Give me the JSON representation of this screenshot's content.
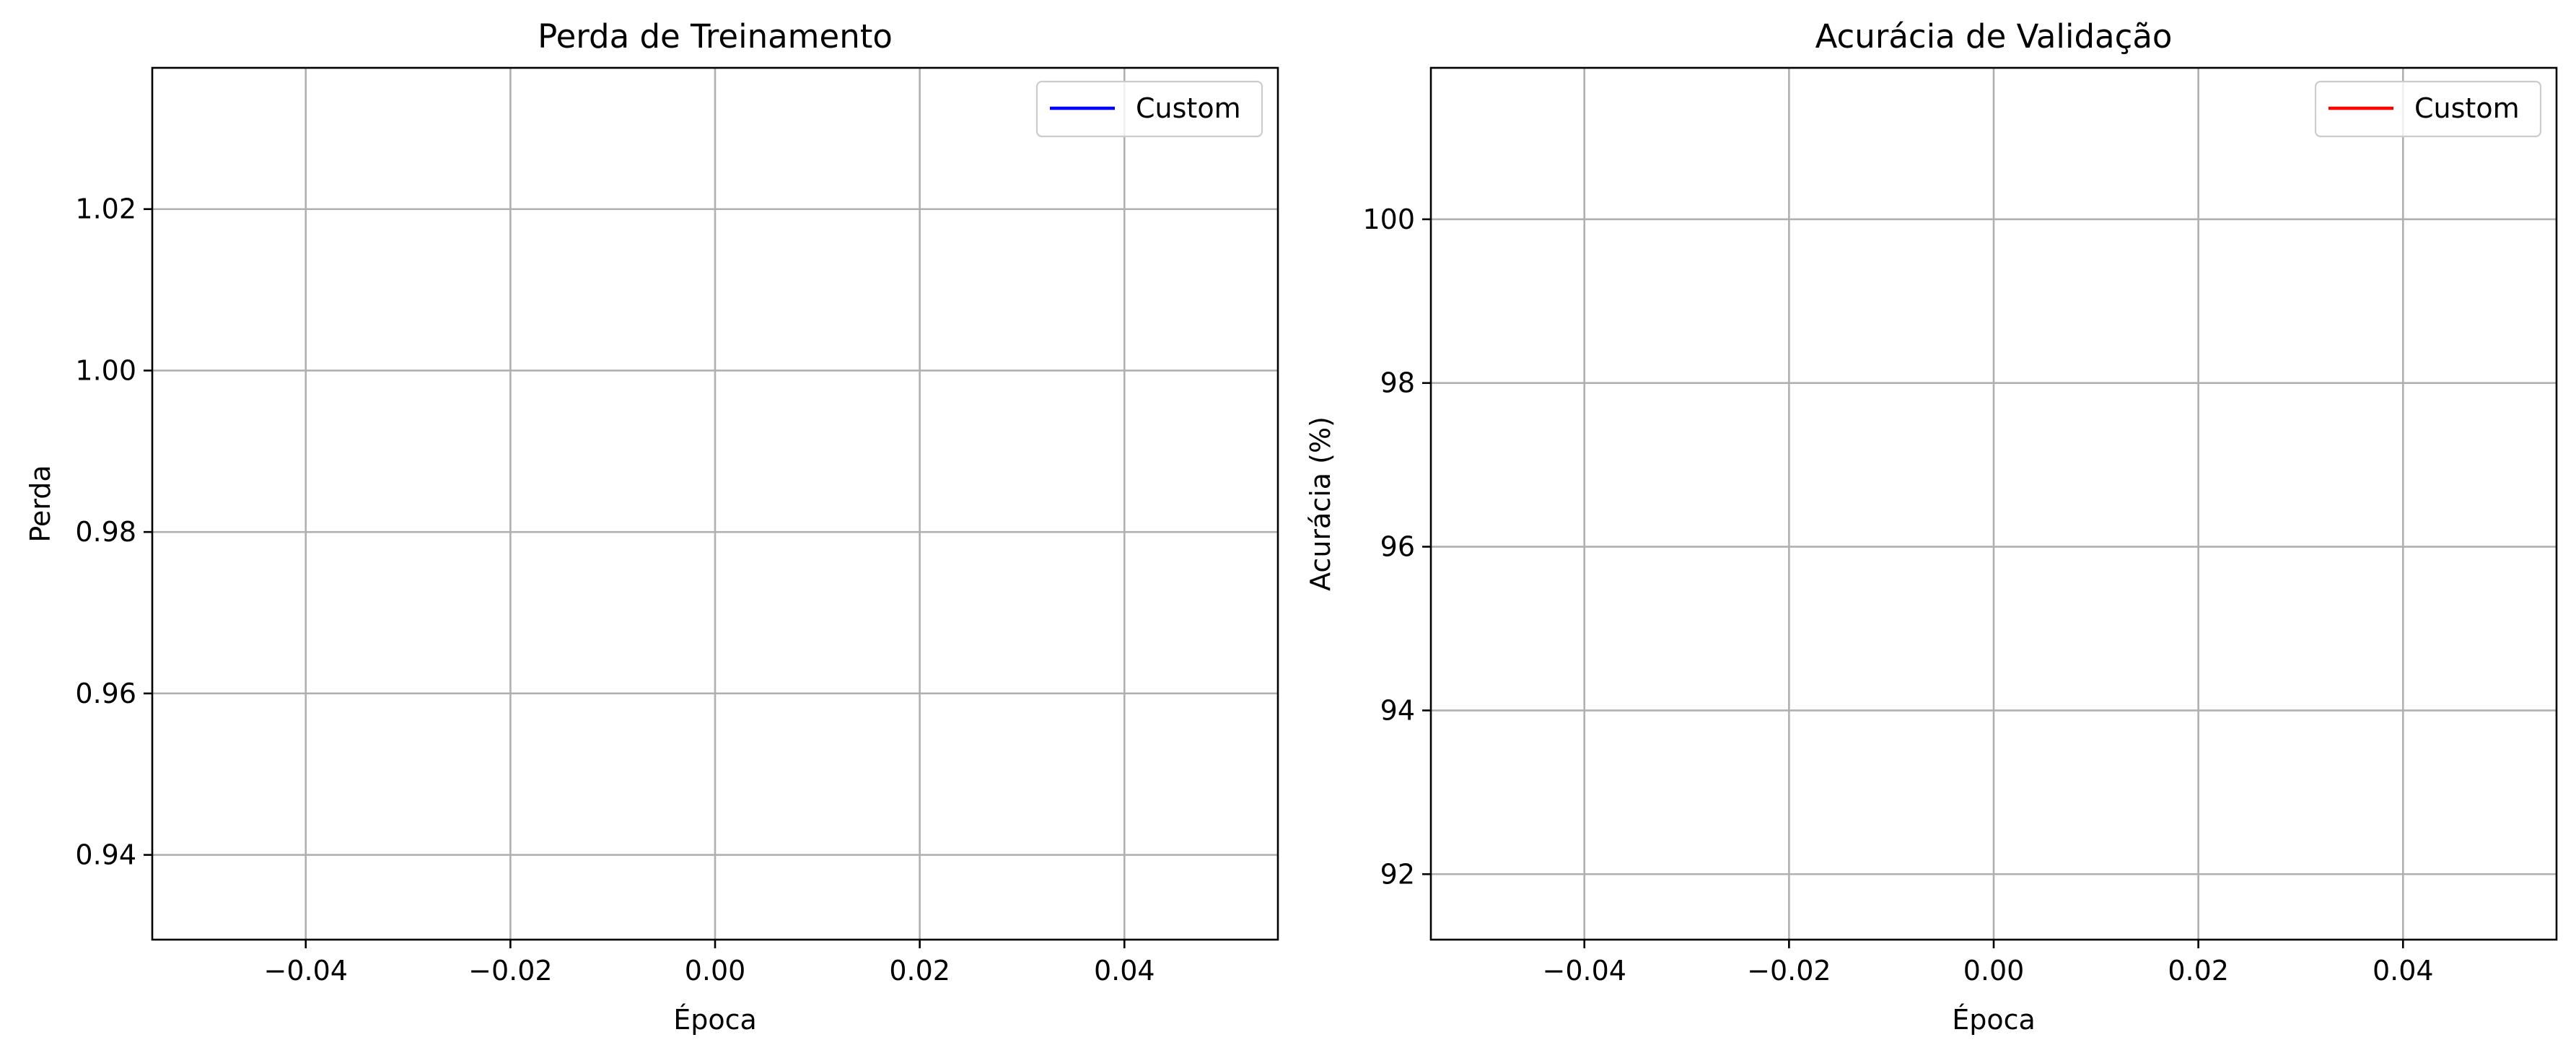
{
  "chart_data": [
    {
      "type": "line",
      "title": "Perda de Treinamento",
      "xlabel": "Época",
      "ylabel": "Perda",
      "xlim": [
        -0.055,
        0.055
      ],
      "ylim": [
        0.9295,
        1.0375
      ],
      "xticks": [
        -0.04,
        -0.02,
        0.0,
        0.02,
        0.04
      ],
      "xtick_labels": [
        "−0.04",
        "−0.02",
        "0.00",
        "0.02",
        "0.04"
      ],
      "yticks": [
        0.94,
        0.96,
        0.98,
        1.0,
        1.02
      ],
      "ytick_labels": [
        "0.94",
        "0.96",
        "0.98",
        "1.00",
        "1.02"
      ],
      "grid": true,
      "legend_placement": "top-right",
      "series": [
        {
          "name": "Custom",
          "color": "#0000ff",
          "x": [],
          "y": []
        }
      ]
    },
    {
      "type": "line",
      "title": "Acurácia de Validação",
      "xlabel": "Época",
      "ylabel": "Acurácia (%)",
      "xlim": [
        -0.055,
        0.055
      ],
      "ylim": [
        91.2,
        101.85
      ],
      "xticks": [
        -0.04,
        -0.02,
        0.0,
        0.02,
        0.04
      ],
      "xtick_labels": [
        "−0.04",
        "−0.02",
        "0.00",
        "0.02",
        "0.04"
      ],
      "yticks": [
        92,
        94,
        96,
        98,
        100
      ],
      "ytick_labels": [
        "92",
        "94",
        "96",
        "98",
        "100"
      ],
      "grid": true,
      "legend_placement": "top-right",
      "series": [
        {
          "name": "Custom",
          "color": "#ff0000",
          "x": [],
          "y": []
        }
      ]
    }
  ]
}
